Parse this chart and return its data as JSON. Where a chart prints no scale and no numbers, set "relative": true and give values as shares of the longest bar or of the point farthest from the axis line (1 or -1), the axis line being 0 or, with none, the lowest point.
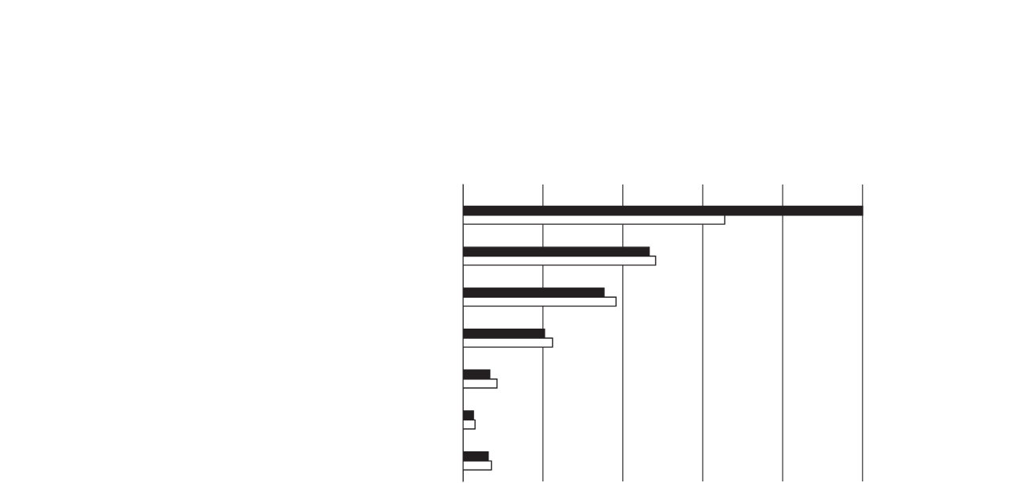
{
  "chart_data": {
    "type": "bar",
    "orientation": "horizontal",
    "relative": true,
    "grid": "x",
    "categories": [
      null,
      null,
      null,
      null,
      null,
      null,
      null
    ],
    "series": [
      {
        "color": "#231f20",
        "values": [
          1,
          0.466,
          0.353,
          0.204,
          0.067,
          0.026,
          0.063
        ]
      },
      {
        "color": "#ffffff",
        "values": [
          0.655,
          0.482,
          0.383,
          0.224,
          0.085,
          0.03,
          0.071
        ]
      }
    ]
  }
}
